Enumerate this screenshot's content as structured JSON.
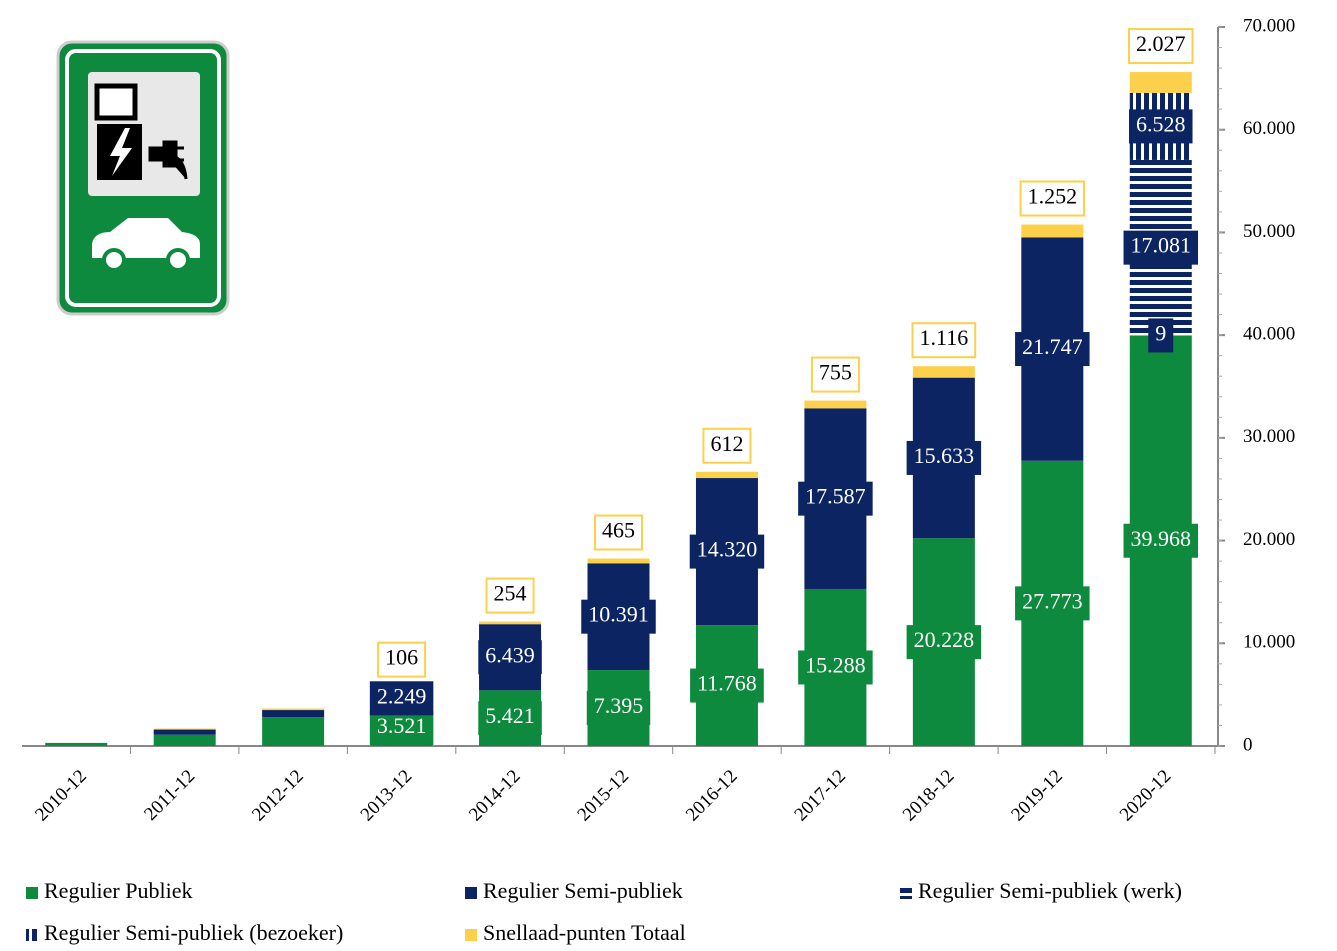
{
  "chart_data": {
    "type": "stacked-bar",
    "categories": [
      "2010-12",
      "2011-12",
      "2012-12",
      "2013-12",
      "2014-12",
      "2015-12",
      "2016-12",
      "2017-12",
      "2018-12",
      "2019-12",
      "2020-12"
    ],
    "series": [
      {
        "name": "Regulier Publiek",
        "color": "#0e8a3e",
        "values": [
          300,
          1100,
          2800,
          3521,
          5421,
          7395,
          11768,
          15288,
          20228,
          27773,
          39968
        ],
        "value_labels": [
          null,
          null,
          null,
          "3.521",
          "5.421",
          "7.395",
          "11.768",
          "15.288",
          "20.228",
          "27.773",
          "39.968"
        ]
      },
      {
        "name": "Regulier Semi-publiek",
        "color": "#0c2461",
        "values": [
          0,
          500,
          700,
          2249,
          6439,
          10391,
          14320,
          17587,
          15633,
          21747,
          9
        ],
        "value_labels": [
          null,
          null,
          null,
          "2.249",
          "6.439",
          "10.391",
          "14.320",
          "17.587",
          "15.633",
          "21.747",
          "9"
        ]
      },
      {
        "name": "Regulier Semi-publiek (werk)",
        "color": "#0c2461",
        "hatch": "horizontal",
        "values": [
          null,
          null,
          null,
          null,
          null,
          null,
          null,
          null,
          null,
          null,
          17081
        ],
        "value_labels": [
          null,
          null,
          null,
          null,
          null,
          null,
          null,
          null,
          null,
          null,
          "17.081"
        ]
      },
      {
        "name": "Regulier Semi-publiek (bezoeker)",
        "color": "#0c2461",
        "hatch": "vertical",
        "values": [
          null,
          null,
          null,
          null,
          null,
          null,
          null,
          null,
          null,
          null,
          6528
        ],
        "value_labels": [
          null,
          null,
          null,
          null,
          null,
          null,
          null,
          null,
          null,
          null,
          "6.528"
        ]
      },
      {
        "name": "Snellaad-punten Totaal",
        "color": "#fcd04a",
        "label_position": "above",
        "values": [
          0,
          100,
          150,
          106,
          254,
          465,
          612,
          755,
          1116,
          1252,
          2027
        ],
        "value_labels": [
          null,
          null,
          null,
          "106",
          "254",
          "465",
          "612",
          "755",
          "1.116",
          "1.252",
          "2.027"
        ]
      }
    ],
    "ylim": [
      0,
      70000
    ],
    "yticks": [
      0,
      {
        "value": 10000,
        "label": "10.000"
      },
      {
        "value": 20000,
        "label": "20.000"
      },
      {
        "value": 30000,
        "label": "30.000"
      },
      {
        "value": 40000,
        "label": "40.000"
      },
      {
        "value": 50000,
        "label": "50.000"
      },
      {
        "value": 60000,
        "label": "60.000"
      },
      {
        "value": 70000,
        "label": "70.000"
      }
    ],
    "y_axis_side": "right",
    "grid": false
  }
}
